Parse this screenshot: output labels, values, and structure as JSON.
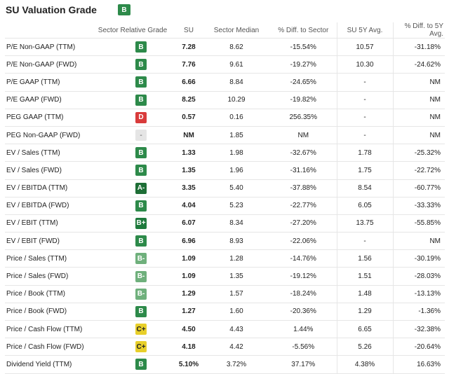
{
  "title": "SU Valuation Grade",
  "overall_grade": "B",
  "colors": {
    "B": "#2d8a4a",
    "B+": "#1e7a3c",
    "A-": "#1e6e36",
    "B-": "#6fb07c",
    "D": "#d93b3b",
    "C+": "#e8cf2a",
    "-": "#e5e5e5"
  },
  "columns": [
    "",
    "Sector Relative Grade",
    "SU",
    "Sector Median",
    "% Diff. to Sector",
    "SU 5Y Avg.",
    "% Diff. to 5Y Avg."
  ],
  "rows": [
    {
      "metric": "P/E Non-GAAP (TTM)",
      "grade": "B",
      "su": "7.28",
      "median": "8.62",
      "diff": "-15.54%",
      "avg5y": "10.57",
      "diff5y": "-31.18%"
    },
    {
      "metric": "P/E Non-GAAP (FWD)",
      "grade": "B",
      "su": "7.76",
      "median": "9.61",
      "diff": "-19.27%",
      "avg5y": "10.30",
      "diff5y": "-24.62%"
    },
    {
      "metric": "P/E GAAP (TTM)",
      "grade": "B",
      "su": "6.66",
      "median": "8.84",
      "diff": "-24.65%",
      "avg5y": "-",
      "diff5y": "NM"
    },
    {
      "metric": "P/E GAAP (FWD)",
      "grade": "B",
      "su": "8.25",
      "median": "10.29",
      "diff": "-19.82%",
      "avg5y": "-",
      "diff5y": "NM"
    },
    {
      "metric": "PEG GAAP (TTM)",
      "grade": "D",
      "su": "0.57",
      "median": "0.16",
      "diff": "256.35%",
      "avg5y": "-",
      "diff5y": "NM"
    },
    {
      "metric": "PEG Non-GAAP (FWD)",
      "grade": "-",
      "su": "NM",
      "median": "1.85",
      "diff": "NM",
      "avg5y": "-",
      "diff5y": "NM"
    },
    {
      "metric": "EV / Sales (TTM)",
      "grade": "B",
      "su": "1.33",
      "median": "1.98",
      "diff": "-32.67%",
      "avg5y": "1.78",
      "diff5y": "-25.32%"
    },
    {
      "metric": "EV / Sales (FWD)",
      "grade": "B",
      "su": "1.35",
      "median": "1.96",
      "diff": "-31.16%",
      "avg5y": "1.75",
      "diff5y": "-22.72%"
    },
    {
      "metric": "EV / EBITDA (TTM)",
      "grade": "A-",
      "su": "3.35",
      "median": "5.40",
      "diff": "-37.88%",
      "avg5y": "8.54",
      "diff5y": "-60.77%"
    },
    {
      "metric": "EV / EBITDA (FWD)",
      "grade": "B",
      "su": "4.04",
      "median": "5.23",
      "diff": "-22.77%",
      "avg5y": "6.05",
      "diff5y": "-33.33%"
    },
    {
      "metric": "EV / EBIT (TTM)",
      "grade": "B+",
      "su": "6.07",
      "median": "8.34",
      "diff": "-27.20%",
      "avg5y": "13.75",
      "diff5y": "-55.85%"
    },
    {
      "metric": "EV / EBIT (FWD)",
      "grade": "B",
      "su": "6.96",
      "median": "8.93",
      "diff": "-22.06%",
      "avg5y": "-",
      "diff5y": "NM"
    },
    {
      "metric": "Price / Sales (TTM)",
      "grade": "B-",
      "su": "1.09",
      "median": "1.28",
      "diff": "-14.76%",
      "avg5y": "1.56",
      "diff5y": "-30.19%"
    },
    {
      "metric": "Price / Sales (FWD)",
      "grade": "B-",
      "su": "1.09",
      "median": "1.35",
      "diff": "-19.12%",
      "avg5y": "1.51",
      "diff5y": "-28.03%"
    },
    {
      "metric": "Price / Book (TTM)",
      "grade": "B-",
      "su": "1.29",
      "median": "1.57",
      "diff": "-18.24%",
      "avg5y": "1.48",
      "diff5y": "-13.13%"
    },
    {
      "metric": "Price / Book (FWD)",
      "grade": "B",
      "su": "1.27",
      "median": "1.60",
      "diff": "-20.36%",
      "avg5y": "1.29",
      "diff5y": "-1.36%"
    },
    {
      "metric": "Price / Cash Flow (TTM)",
      "grade": "C+",
      "su": "4.50",
      "median": "4.43",
      "diff": "1.44%",
      "avg5y": "6.65",
      "diff5y": "-32.38%"
    },
    {
      "metric": "Price / Cash Flow (FWD)",
      "grade": "C+",
      "su": "4.18",
      "median": "4.42",
      "diff": "-5.56%",
      "avg5y": "5.26",
      "diff5y": "-20.64%"
    },
    {
      "metric": "Dividend Yield (TTM)",
      "grade": "B",
      "su": "5.10%",
      "median": "3.72%",
      "diff": "37.17%",
      "avg5y": "4.38%",
      "diff5y": "16.63%"
    }
  ]
}
